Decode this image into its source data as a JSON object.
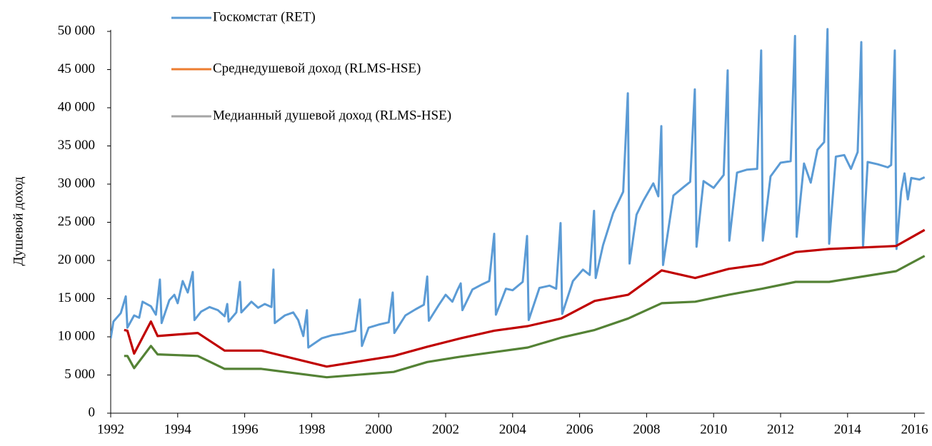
{
  "chart_data": {
    "type": "line",
    "y_axis_label": "Душевой доход",
    "xlim": [
      1992,
      2016.3
    ],
    "xticks": [
      1992,
      1994,
      1996,
      1998,
      2000,
      2002,
      2004,
      2006,
      2008,
      2010,
      2012,
      2014,
      2016
    ],
    "ylim": [
      0,
      50200
    ],
    "yticks": [
      0,
      {
        "value": 5000,
        "label": "5 000"
      },
      {
        "value": 10000,
        "label": "10 000"
      },
      {
        "value": 15000,
        "label": "15 000"
      },
      {
        "value": 20000,
        "label": "20 000"
      },
      {
        "value": 25000,
        "label": "25 000"
      },
      {
        "value": 30000,
        "label": "30 000"
      },
      {
        "value": 35000,
        "label": "35 000"
      },
      {
        "value": 40000,
        "label": "40 000"
      },
      {
        "value": 45000,
        "label": "45 000"
      },
      {
        "value": 50000,
        "label": "50 000"
      }
    ],
    "grid": false,
    "legend_position": "top",
    "series": [
      {
        "name": "Госкомстат (RET)",
        "color": "#5b9bd5",
        "legend_color": "#5b9bd5",
        "x": [
          1992.0,
          1992.08,
          1992.3,
          1992.45,
          1992.5,
          1992.7,
          1992.85,
          1992.95,
          1993.2,
          1993.35,
          1993.47,
          1993.52,
          1993.75,
          1993.9,
          1994.0,
          1994.15,
          1994.3,
          1994.45,
          1994.5,
          1994.7,
          1994.95,
          1995.2,
          1995.4,
          1995.48,
          1995.52,
          1995.75,
          1995.86,
          1995.9,
          1996.2,
          1996.4,
          1996.6,
          1996.8,
          1996.86,
          1996.9,
          1997.2,
          1997.45,
          1997.6,
          1997.75,
          1997.86,
          1997.9,
          1998.3,
          1998.6,
          1998.9,
          1999.3,
          1999.44,
          1999.5,
          1999.7,
          2000.0,
          2000.3,
          2000.42,
          2000.47,
          2000.8,
          2001.1,
          2001.35,
          2001.45,
          2001.5,
          2001.8,
          2002.0,
          2002.2,
          2002.35,
          2002.45,
          2002.5,
          2002.8,
          2003.1,
          2003.3,
          2003.45,
          2003.5,
          2003.8,
          2004.0,
          2004.3,
          2004.43,
          2004.48,
          2004.8,
          2005.1,
          2005.3,
          2005.43,
          2005.48,
          2005.8,
          2006.1,
          2006.3,
          2006.43,
          2006.48,
          2006.7,
          2007.0,
          2007.3,
          2007.44,
          2007.49,
          2007.7,
          2007.9,
          2008.2,
          2008.35,
          2008.44,
          2008.49,
          2008.8,
          2009.1,
          2009.3,
          2009.44,
          2009.49,
          2009.7,
          2010.0,
          2010.3,
          2010.42,
          2010.47,
          2010.7,
          2011.0,
          2011.3,
          2011.42,
          2011.47,
          2011.7,
          2012.0,
          2012.3,
          2012.43,
          2012.48,
          2012.7,
          2012.9,
          2013.1,
          2013.3,
          2013.4,
          2013.45,
          2013.65,
          2013.9,
          2014.1,
          2014.3,
          2014.41,
          2014.46,
          2014.6,
          2014.9,
          2015.2,
          2015.3,
          2015.41,
          2015.46,
          2015.6,
          2015.7,
          2015.8,
          2015.9,
          2016.15,
          2016.3
        ],
        "values": [
          9800,
          12000,
          13100,
          15300,
          11200,
          12800,
          12500,
          14600,
          14000,
          12900,
          17500,
          11800,
          14800,
          15500,
          14400,
          17300,
          15800,
          18500,
          12200,
          13300,
          13900,
          13500,
          12700,
          14300,
          12000,
          13200,
          17200,
          13200,
          14600,
          13800,
          14300,
          13900,
          18800,
          11800,
          12800,
          13200,
          12200,
          10100,
          13500,
          8600,
          9800,
          10200,
          10400,
          10800,
          14900,
          8800,
          11200,
          11600,
          11900,
          15800,
          10500,
          12800,
          13600,
          14200,
          17900,
          12100,
          14200,
          15500,
          14600,
          16100,
          17000,
          13500,
          16200,
          16900,
          17300,
          23500,
          12900,
          16300,
          16100,
          17200,
          23200,
          12200,
          16400,
          16700,
          16300,
          24900,
          13000,
          17300,
          18800,
          18100,
          26500,
          17700,
          22000,
          26200,
          29000,
          41900,
          19600,
          26000,
          27800,
          30100,
          28400,
          37600,
          19400,
          28500,
          29600,
          30300,
          42400,
          21800,
          30400,
          29500,
          31200,
          44900,
          22600,
          31500,
          31900,
          32000,
          47500,
          22600,
          31000,
          32800,
          33000,
          49400,
          23100,
          32700,
          30200,
          34500,
          35500,
          50300,
          22200,
          33600,
          33800,
          32000,
          34200,
          48600,
          21700,
          32900,
          32600,
          32200,
          32500,
          47500,
          21500,
          29000,
          31400,
          28000,
          30800,
          30600,
          30900
        ]
      },
      {
        "name": "Среднедушевой доход (RLMS-HSE)",
        "color": "#c00000",
        "legend_color": "#ed7d31",
        "x": [
          1992.4,
          1992.5,
          1992.7,
          1993.2,
          1993.4,
          1994.6,
          1995.4,
          1996.5,
          1998.45,
          2000.45,
          2001.45,
          2002.45,
          2003.45,
          2004.45,
          2005.45,
          2006.45,
          2007.45,
          2008.45,
          2009.45,
          2010.45,
          2011.45,
          2012.45,
          2013.45,
          2014.45,
          2015.45,
          2016.3
        ],
        "values": [
          10900,
          10800,
          7800,
          12000,
          10100,
          10500,
          8200,
          8200,
          6100,
          7500,
          8700,
          9800,
          10800,
          11400,
          12400,
          14700,
          15500,
          18700,
          17700,
          18900,
          19500,
          21100,
          21500,
          21700,
          21900,
          24000
        ]
      },
      {
        "name": "Медианный душевой доход (RLMS-HSE)",
        "color": "#548235",
        "legend_color": "#a5a5a5",
        "x": [
          1992.4,
          1992.5,
          1992.7,
          1993.2,
          1993.4,
          1994.6,
          1995.4,
          1996.5,
          1998.45,
          2000.45,
          2001.45,
          2002.45,
          2003.45,
          2004.45,
          2005.45,
          2006.45,
          2007.45,
          2008.45,
          2009.45,
          2010.45,
          2011.45,
          2012.45,
          2013.45,
          2014.45,
          2015.45,
          2016.3
        ],
        "values": [
          7500,
          7500,
          5900,
          8800,
          7700,
          7500,
          5800,
          5800,
          4700,
          5400,
          6700,
          7400,
          8000,
          8600,
          9900,
          10900,
          12400,
          14400,
          14600,
          15500,
          16300,
          17200,
          17200,
          17900,
          18600,
          20600
        ]
      }
    ]
  }
}
